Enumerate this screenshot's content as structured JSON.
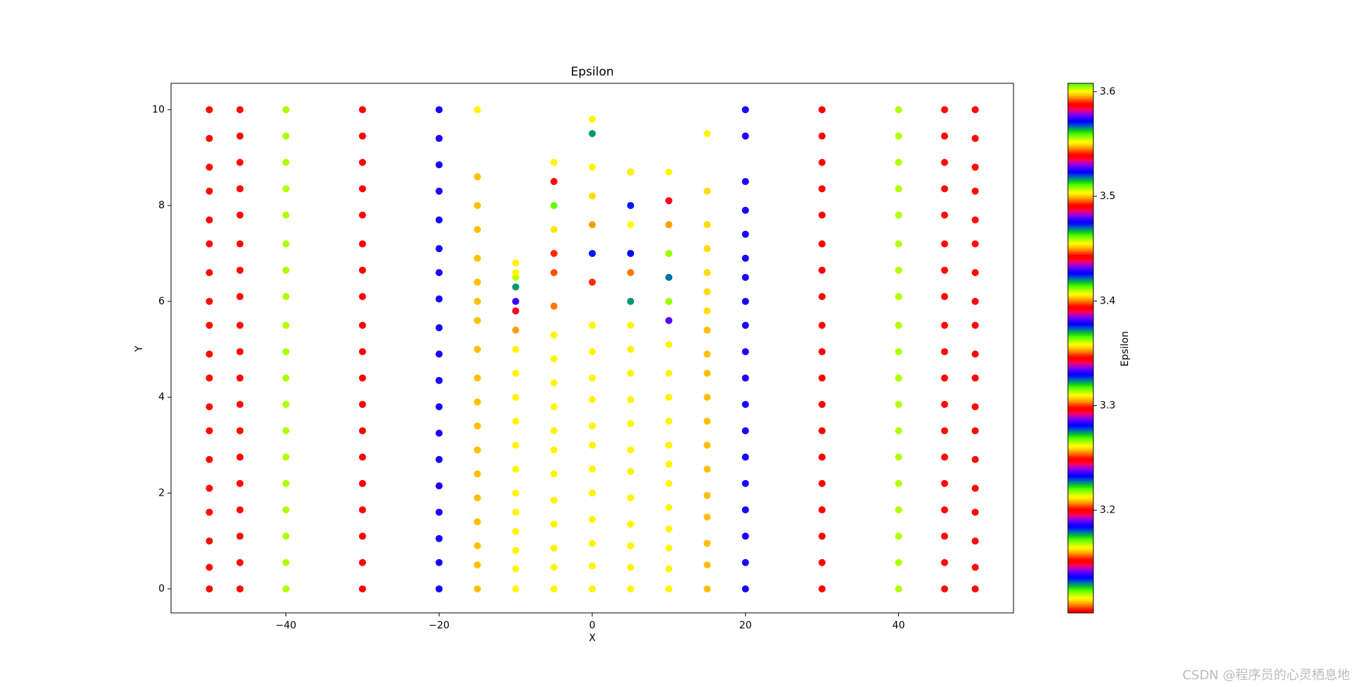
{
  "chart_data": {
    "type": "scatter",
    "title": "Epsilon",
    "x_label": "X",
    "y_label": "Y",
    "colorbar_label": "Epsilon",
    "watermark": "CSDN @程序员的心灵栖息地",
    "colormap": "prism",
    "clim": [
      3.102,
      3.608
    ],
    "cticks": [
      3.2,
      3.3,
      3.4,
      3.5,
      3.6
    ],
    "xlim": [
      -55,
      55
    ],
    "xticks": [
      {
        "value": -40,
        "label": "−40"
      },
      {
        "value": -20,
        "label": "−20"
      },
      0,
      20,
      40
    ],
    "ylim": [
      -0.5,
      10.55
    ],
    "yticks": [
      0,
      2,
      4,
      6,
      8,
      10
    ],
    "x": [
      -50,
      -46,
      -40,
      -30,
      -20,
      -15,
      -10,
      -5,
      0,
      5,
      10,
      15,
      20,
      30,
      40,
      46,
      50
    ],
    "series": [
      {
        "values": [
          0,
          0,
          0,
          0,
          0,
          0,
          0,
          0,
          0,
          0,
          0,
          0,
          0,
          0,
          0,
          0,
          0
        ],
        "c": [
          3.105,
          3.105,
          3.12,
          3.2,
          3.38,
          3.5,
          3.6,
          3.6,
          3.6,
          3.6,
          3.6,
          3.5,
          3.38,
          3.2,
          3.12,
          3.105,
          3.105
        ]
      },
      {
        "values": [
          0.45,
          0.55,
          0.55,
          0.55,
          0.55,
          0.5,
          0.42,
          0.45,
          0.48,
          0.45,
          0.42,
          0.5,
          0.55,
          0.55,
          0.55,
          0.55,
          0.45
        ],
        "c": [
          3.105,
          3.105,
          3.12,
          3.2,
          3.38,
          3.5,
          3.6,
          3.6,
          3.6,
          3.6,
          3.6,
          3.5,
          3.38,
          3.2,
          3.12,
          3.105,
          3.105
        ]
      },
      {
        "values": [
          1.0,
          1.1,
          1.1,
          1.1,
          1.05,
          0.9,
          0.8,
          0.85,
          0.95,
          0.9,
          0.85,
          0.95,
          1.1,
          1.1,
          1.1,
          1.1,
          1.0
        ],
        "c": [
          3.105,
          3.105,
          3.12,
          3.2,
          3.38,
          3.5,
          3.6,
          3.6,
          3.6,
          3.6,
          3.6,
          3.5,
          3.38,
          3.2,
          3.12,
          3.105,
          3.105
        ]
      },
      {
        "values": [
          1.6,
          1.65,
          1.65,
          1.65,
          1.6,
          1.4,
          1.2,
          1.35,
          1.45,
          1.35,
          1.25,
          1.5,
          1.65,
          1.65,
          1.65,
          1.65,
          1.6
        ],
        "c": [
          3.105,
          3.105,
          3.12,
          3.2,
          3.38,
          3.5,
          3.6,
          3.6,
          3.6,
          3.6,
          3.6,
          3.5,
          3.38,
          3.2,
          3.12,
          3.105,
          3.105
        ]
      },
      {
        "values": [
          2.1,
          2.2,
          2.2,
          2.2,
          2.15,
          1.9,
          1.6,
          1.85,
          2.0,
          1.9,
          1.7,
          1.95,
          2.2,
          2.2,
          2.2,
          2.2,
          2.1
        ],
        "c": [
          3.105,
          3.105,
          3.12,
          3.2,
          3.38,
          3.5,
          3.6,
          3.6,
          3.6,
          3.6,
          3.6,
          3.5,
          3.38,
          3.2,
          3.12,
          3.105,
          3.105
        ]
      },
      {
        "values": [
          2.7,
          2.75,
          2.75,
          2.75,
          2.7,
          2.4,
          2.0,
          2.4,
          2.5,
          2.45,
          2.2,
          2.5,
          2.75,
          2.75,
          2.75,
          2.75,
          2.7
        ],
        "c": [
          3.105,
          3.105,
          3.12,
          3.2,
          3.38,
          3.5,
          3.6,
          3.6,
          3.6,
          3.6,
          3.6,
          3.5,
          3.38,
          3.2,
          3.12,
          3.105,
          3.105
        ]
      },
      {
        "values": [
          3.3,
          3.3,
          3.3,
          3.3,
          3.25,
          2.9,
          2.5,
          2.9,
          3.0,
          2.9,
          2.6,
          3.0,
          3.3,
          3.3,
          3.3,
          3.3,
          3.3
        ],
        "c": [
          3.105,
          3.105,
          3.12,
          3.2,
          3.38,
          3.5,
          3.6,
          3.6,
          3.6,
          3.6,
          3.6,
          3.5,
          3.38,
          3.2,
          3.12,
          3.105,
          3.105
        ]
      },
      {
        "values": [
          3.8,
          3.85,
          3.85,
          3.85,
          3.8,
          3.4,
          3.0,
          3.3,
          3.4,
          3.45,
          3.0,
          3.5,
          3.85,
          3.85,
          3.85,
          3.85,
          3.8
        ],
        "c": [
          3.105,
          3.105,
          3.12,
          3.2,
          3.38,
          3.5,
          3.6,
          3.6,
          3.6,
          3.6,
          3.6,
          3.5,
          3.38,
          3.2,
          3.12,
          3.105,
          3.105
        ]
      },
      {
        "values": [
          4.4,
          4.4,
          4.4,
          4.4,
          4.35,
          3.9,
          3.5,
          3.8,
          3.95,
          3.95,
          3.5,
          4.0,
          4.4,
          4.4,
          4.4,
          4.4,
          4.4
        ],
        "c": [
          3.105,
          3.105,
          3.12,
          3.2,
          3.38,
          3.5,
          3.6,
          3.6,
          3.6,
          3.6,
          3.6,
          3.5,
          3.38,
          3.2,
          3.12,
          3.105,
          3.105
        ]
      },
      {
        "values": [
          4.9,
          4.95,
          4.95,
          4.95,
          4.9,
          4.4,
          4.0,
          4.3,
          4.4,
          4.5,
          4.0,
          4.5,
          4.95,
          4.95,
          4.95,
          4.95,
          4.9
        ],
        "c": [
          3.105,
          3.105,
          3.12,
          3.2,
          3.38,
          3.5,
          3.6,
          3.6,
          3.6,
          3.6,
          3.6,
          3.5,
          3.38,
          3.2,
          3.12,
          3.105,
          3.105
        ]
      },
      {
        "values": [
          5.5,
          5.5,
          5.5,
          5.5,
          5.45,
          5.0,
          4.5,
          4.8,
          4.95,
          5.0,
          4.5,
          4.9,
          5.5,
          5.5,
          5.5,
          5.5,
          5.5
        ],
        "c": [
          3.105,
          3.105,
          3.12,
          3.2,
          3.38,
          3.5,
          3.6,
          3.6,
          3.6,
          3.6,
          3.6,
          3.5,
          3.38,
          3.2,
          3.12,
          3.105,
          3.105
        ]
      },
      {
        "values": [
          6.0,
          6.1,
          6.1,
          6.1,
          6.05,
          5.6,
          5.0,
          5.3,
          5.5,
          5.5,
          5.1,
          5.4,
          6.0,
          6.1,
          6.1,
          6.1,
          6.0
        ],
        "c": [
          3.105,
          3.105,
          3.12,
          3.2,
          3.38,
          3.5,
          3.6,
          3.6,
          3.6,
          3.6,
          3.6,
          3.5,
          3.38,
          3.2,
          3.12,
          3.105,
          3.105
        ]
      },
      {
        "values": [
          6.6,
          6.65,
          6.65,
          6.65,
          6.6,
          6.0,
          5.4,
          5.9,
          6.4,
          6.0,
          5.6,
          5.8,
          6.5,
          6.65,
          6.65,
          6.65,
          6.6
        ],
        "c": [
          3.105,
          3.105,
          3.12,
          3.2,
          3.38,
          3.5,
          3.45,
          3.4,
          3.3,
          3.42,
          3.48,
          3.55,
          3.38,
          3.2,
          3.12,
          3.105,
          3.105
        ]
      },
      {
        "values": [
          7.2,
          7.2,
          7.2,
          7.2,
          7.1,
          6.4,
          5.8,
          6.6,
          7.0,
          6.6,
          6.0,
          6.2,
          6.9,
          7.2,
          7.2,
          7.2,
          7.2
        ],
        "c": [
          3.105,
          3.105,
          3.12,
          3.2,
          3.38,
          3.5,
          3.44,
          3.35,
          3.28,
          3.4,
          3.46,
          3.55,
          3.38,
          3.2,
          3.12,
          3.105,
          3.105
        ]
      },
      {
        "values": [
          7.7,
          7.8,
          7.8,
          7.8,
          7.7,
          6.9,
          6.0,
          7.0,
          7.6,
          7.0,
          6.5,
          6.6,
          7.4,
          7.8,
          7.8,
          7.8,
          7.7
        ],
        "c": [
          3.105,
          3.105,
          3.12,
          3.2,
          3.38,
          3.5,
          3.43,
          3.3,
          3.45,
          3.33,
          3.47,
          3.55,
          3.38,
          3.2,
          3.12,
          3.105,
          3.105
        ]
      },
      {
        "values": [
          8.3,
          8.35,
          8.35,
          8.35,
          8.3,
          7.5,
          6.3,
          7.5,
          8.2,
          7.6,
          7.0,
          7.1,
          7.9,
          8.35,
          8.35,
          8.35,
          8.3
        ],
        "c": [
          3.105,
          3.105,
          3.12,
          3.2,
          3.38,
          3.5,
          3.42,
          3.26,
          3.55,
          3.31,
          3.46,
          3.55,
          3.38,
          3.2,
          3.12,
          3.105,
          3.105
        ]
      },
      {
        "values": [
          8.8,
          8.9,
          8.9,
          8.9,
          8.85,
          8.0,
          6.5,
          8.0,
          8.8,
          8.0,
          7.6,
          7.6,
          8.5,
          8.9,
          8.9,
          8.9,
          8.8
        ],
        "c": [
          3.105,
          3.105,
          3.12,
          3.2,
          3.38,
          3.5,
          3.41,
          3.22,
          3.6,
          3.28,
          3.45,
          3.55,
          3.38,
          3.2,
          3.12,
          3.105,
          3.105
        ]
      },
      {
        "values": [
          9.4,
          9.45,
          9.45,
          9.45,
          9.4,
          8.6,
          6.6,
          8.5,
          9.5,
          8.7,
          8.1,
          8.3,
          9.45,
          9.45,
          9.45,
          9.45,
          9.4
        ],
        "c": [
          3.105,
          3.105,
          3.12,
          3.2,
          3.38,
          3.5,
          3.6,
          3.15,
          3.42,
          3.25,
          3.44,
          3.55,
          3.38,
          3.2,
          3.12,
          3.105,
          3.105
        ]
      },
      {
        "values": [
          10,
          10,
          10,
          10,
          10,
          10.0,
          6.8,
          8.9,
          9.8,
          8.7,
          8.7,
          9.5,
          10,
          10,
          10,
          10,
          10
        ],
        "c": [
          3.105,
          3.105,
          3.12,
          3.2,
          3.38,
          3.6,
          3.6,
          3.6,
          3.6,
          3.6,
          3.6,
          3.6,
          3.38,
          3.2,
          3.12,
          3.105,
          3.105
        ]
      }
    ]
  }
}
